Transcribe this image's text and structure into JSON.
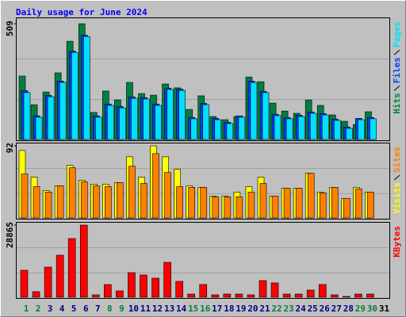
{
  "chart_data": [
    {
      "type": "bar",
      "title": "Daily usage for June 2024",
      "series": [
        {
          "name": "Hits",
          "color": "#008040",
          "values": [
            279,
            153,
            209,
            293,
            432,
            509,
            119,
            213,
            174,
            251,
            202,
            195,
            244,
            227,
            132,
            192,
            101,
            87,
            101,
            275,
            254,
            160,
            125,
            115,
            174,
            150,
            108,
            80,
            66,
            122,
            null
          ]
        },
        {
          "name": "Files",
          "color": "#0040ff",
          "values": [
            215,
            104,
            194,
            257,
            389,
            459,
            104,
            156,
            145,
            187,
            184,
            156,
            226,
            222,
            97,
            159,
            93,
            76,
            104,
            257,
            212,
            111,
            97,
            107,
            121,
            114,
            90,
            55,
            93,
            97,
            null
          ]
        },
        {
          "name": "Pages",
          "color": "#00e0ff",
          "values": [
            206,
            98,
            188,
            251,
            383,
            453,
            98,
            150,
            139,
            181,
            178,
            150,
            220,
            216,
            91,
            153,
            87,
            70,
            98,
            251,
            206,
            105,
            91,
            101,
            115,
            108,
            84,
            49,
            87,
            91,
            null
          ]
        }
      ],
      "ylim": [
        0,
        509
      ],
      "yticks": [
        509
      ]
    },
    {
      "type": "bar",
      "series": [
        {
          "name": "Visits",
          "color": "#ffff00",
          "values": [
            86,
            52,
            35,
            41,
            67,
            48,
            43,
            43,
            45,
            78,
            52,
            92,
            78,
            62,
            41,
            39,
            28,
            28,
            33,
            40,
            52,
            28,
            38,
            38,
            57,
            33,
            39,
            25,
            39,
            33,
            null
          ]
        },
        {
          "name": "Sites",
          "color": "#ff8000",
          "values": [
            56,
            40,
            33,
            41,
            64,
            46,
            41,
            40,
            45,
            66,
            44,
            82,
            58,
            40,
            39,
            39,
            27,
            27,
            27,
            33,
            44,
            28,
            38,
            38,
            57,
            32,
            39,
            25,
            37,
            33,
            null
          ]
        }
      ],
      "ylim": [
        0,
        92
      ],
      "yticks": [
        92
      ]
    },
    {
      "type": "bar",
      "series": [
        {
          "name": "KBytes",
          "color": "#ff0000",
          "values": [
            10785,
            2220,
            12054,
            16812,
            23473,
            28865,
            952,
            5075,
            2538,
            9833,
            8882,
            7613,
            13957,
            6344,
            1269,
            5075,
            952,
            1269,
            1269,
            952,
            6661,
            5710,
            1269,
            1269,
            2855,
            5075,
            952,
            317,
            1269,
            1269,
            null
          ]
        }
      ],
      "ylim": [
        0,
        28865
      ],
      "yticks": [
        28865
      ],
      "categories": [
        "1",
        "2",
        "3",
        "4",
        "5",
        "6",
        "7",
        "8",
        "9",
        "10",
        "11",
        "12",
        "13",
        "14",
        "15",
        "16",
        "17",
        "18",
        "19",
        "20",
        "21",
        "22",
        "23",
        "24",
        "25",
        "26",
        "27",
        "28",
        "29",
        "30",
        "31"
      ],
      "category_colors": [
        "#008040",
        "#008040",
        "#000080",
        "#000080",
        "#000080",
        "#000080",
        "#000080",
        "#008040",
        "#008040",
        "#000080",
        "#000080",
        "#000080",
        "#000080",
        "#000080",
        "#008040",
        "#008040",
        "#000080",
        "#000080",
        "#000080",
        "#000080",
        "#000080",
        "#008040",
        "#008040",
        "#000080",
        "#000080",
        "#000080",
        "#000080",
        "#000080",
        "#008040",
        "#008040",
        "#000000"
      ]
    }
  ]
}
